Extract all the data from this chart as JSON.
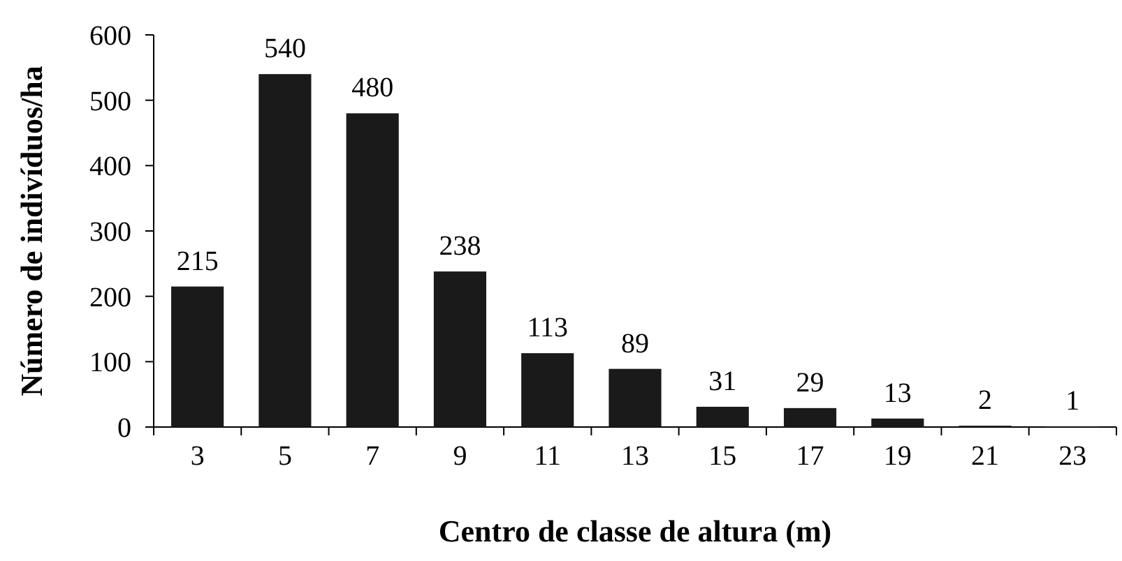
{
  "chart_data": {
    "type": "bar",
    "xlabel": "Centro de classe de altura (m)",
    "ylabel": "Número de indivíduos/ha",
    "categories": [
      "3",
      "5",
      "7",
      "9",
      "11",
      "13",
      "15",
      "17",
      "19",
      "21",
      "23"
    ],
    "values": [
      215,
      540,
      480,
      238,
      113,
      89,
      31,
      29,
      13,
      2,
      1
    ],
    "color": "#1a1a1a",
    "ylim": [
      0,
      600
    ],
    "yticks": [
      0,
      100,
      200,
      300,
      400,
      500,
      600
    ],
    "data_labels": true
  }
}
